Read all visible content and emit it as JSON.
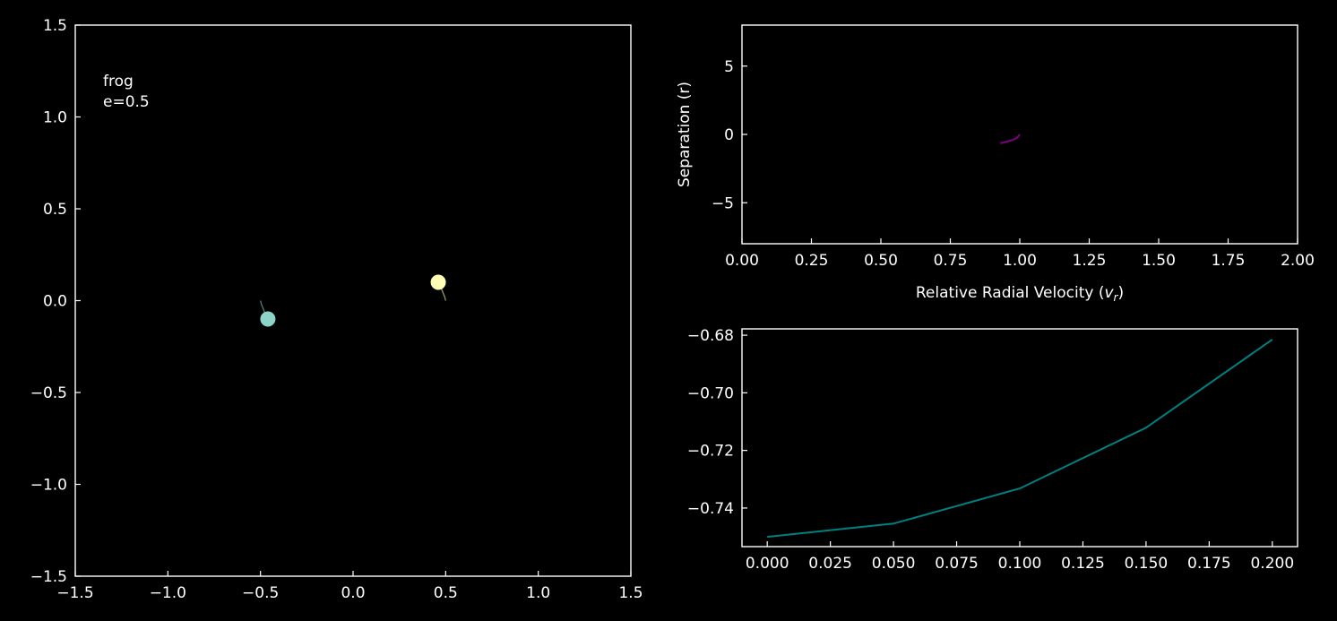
{
  "chart_data": [
    {
      "type": "scatter",
      "xlim": [
        -1.5,
        1.5
      ],
      "ylim": [
        -1.5,
        1.5
      ],
      "xticks": [
        -1.5,
        -1.0,
        -0.5,
        0.0,
        0.5,
        1.0,
        1.5
      ],
      "yticks": [
        -1.5,
        -1.0,
        -0.5,
        0.0,
        0.5,
        1.0,
        1.5
      ],
      "xtick_labels": [
        "−1.5",
        "−1.0",
        "−0.5",
        "0.0",
        "0.5",
        "1.0",
        "1.5"
      ],
      "ytick_labels": [
        "−1.5",
        "−1.0",
        "−0.5",
        "0.0",
        "0.5",
        "1.0",
        "1.5"
      ],
      "annotation_lines": [
        "frog",
        "e=0.5"
      ],
      "bodies": [
        {
          "x": -0.46,
          "y": -0.1,
          "color": "#8dd3c7"
        },
        {
          "x": 0.46,
          "y": 0.1,
          "color": "#ffffb3"
        }
      ],
      "trails": [
        {
          "color": "#8dd3c7",
          "points": [
            [
              -0.5,
              0.0
            ],
            [
              -0.495,
              -0.02
            ],
            [
              -0.485,
              -0.045
            ],
            [
              -0.475,
              -0.07
            ],
            [
              -0.465,
              -0.09
            ]
          ]
        },
        {
          "color": "#ffffb3",
          "points": [
            [
              0.5,
              0.0
            ],
            [
              0.495,
              0.02
            ],
            [
              0.485,
              0.045
            ],
            [
              0.475,
              0.07
            ],
            [
              0.465,
              0.09
            ]
          ]
        }
      ],
      "grid": false
    },
    {
      "type": "line",
      "xlim": [
        0.0,
        2.0
      ],
      "ylim": [
        -8,
        8
      ],
      "xticks": [
        0.0,
        0.25,
        0.5,
        0.75,
        1.0,
        1.25,
        1.5,
        1.75,
        2.0
      ],
      "yticks": [
        -5,
        0,
        5
      ],
      "xtick_labels": [
        "0.00",
        "0.25",
        "0.50",
        "0.75",
        "1.00",
        "1.25",
        "1.50",
        "1.75",
        "2.00"
      ],
      "ytick_labels": [
        "−5",
        "0",
        "5"
      ],
      "xlabel": "Relative Radial Velocity (v_r)",
      "ylabel": "Separation (r)",
      "series": [
        {
          "color": "#800080",
          "x": [
            1.0,
            0.99,
            0.975,
            0.955,
            0.93
          ],
          "y": [
            0.0,
            -0.25,
            -0.4,
            -0.52,
            -0.65
          ]
        }
      ],
      "grid": false
    },
    {
      "type": "line",
      "xlim": [
        -0.01,
        0.21
      ],
      "ylim": [
        -0.7534,
        -0.6778
      ],
      "xticks": [
        0.0,
        0.025,
        0.05,
        0.075,
        0.1,
        0.125,
        0.15,
        0.175,
        0.2
      ],
      "yticks": [
        -0.74,
        -0.72,
        -0.7,
        -0.68
      ],
      "xtick_labels": [
        "0.000",
        "0.025",
        "0.050",
        "0.075",
        "0.100",
        "0.125",
        "0.150",
        "0.175",
        "0.200"
      ],
      "ytick_labels": [
        "−0.74",
        "−0.72",
        "−0.70",
        "−0.68"
      ],
      "series": [
        {
          "color": "#008080",
          "x": [
            0.0,
            0.05,
            0.1,
            0.15,
            0.2
          ],
          "y": [
            -0.75,
            -0.7454,
            -0.7332,
            -0.7121,
            -0.6815
          ]
        }
      ],
      "grid": false
    }
  ]
}
